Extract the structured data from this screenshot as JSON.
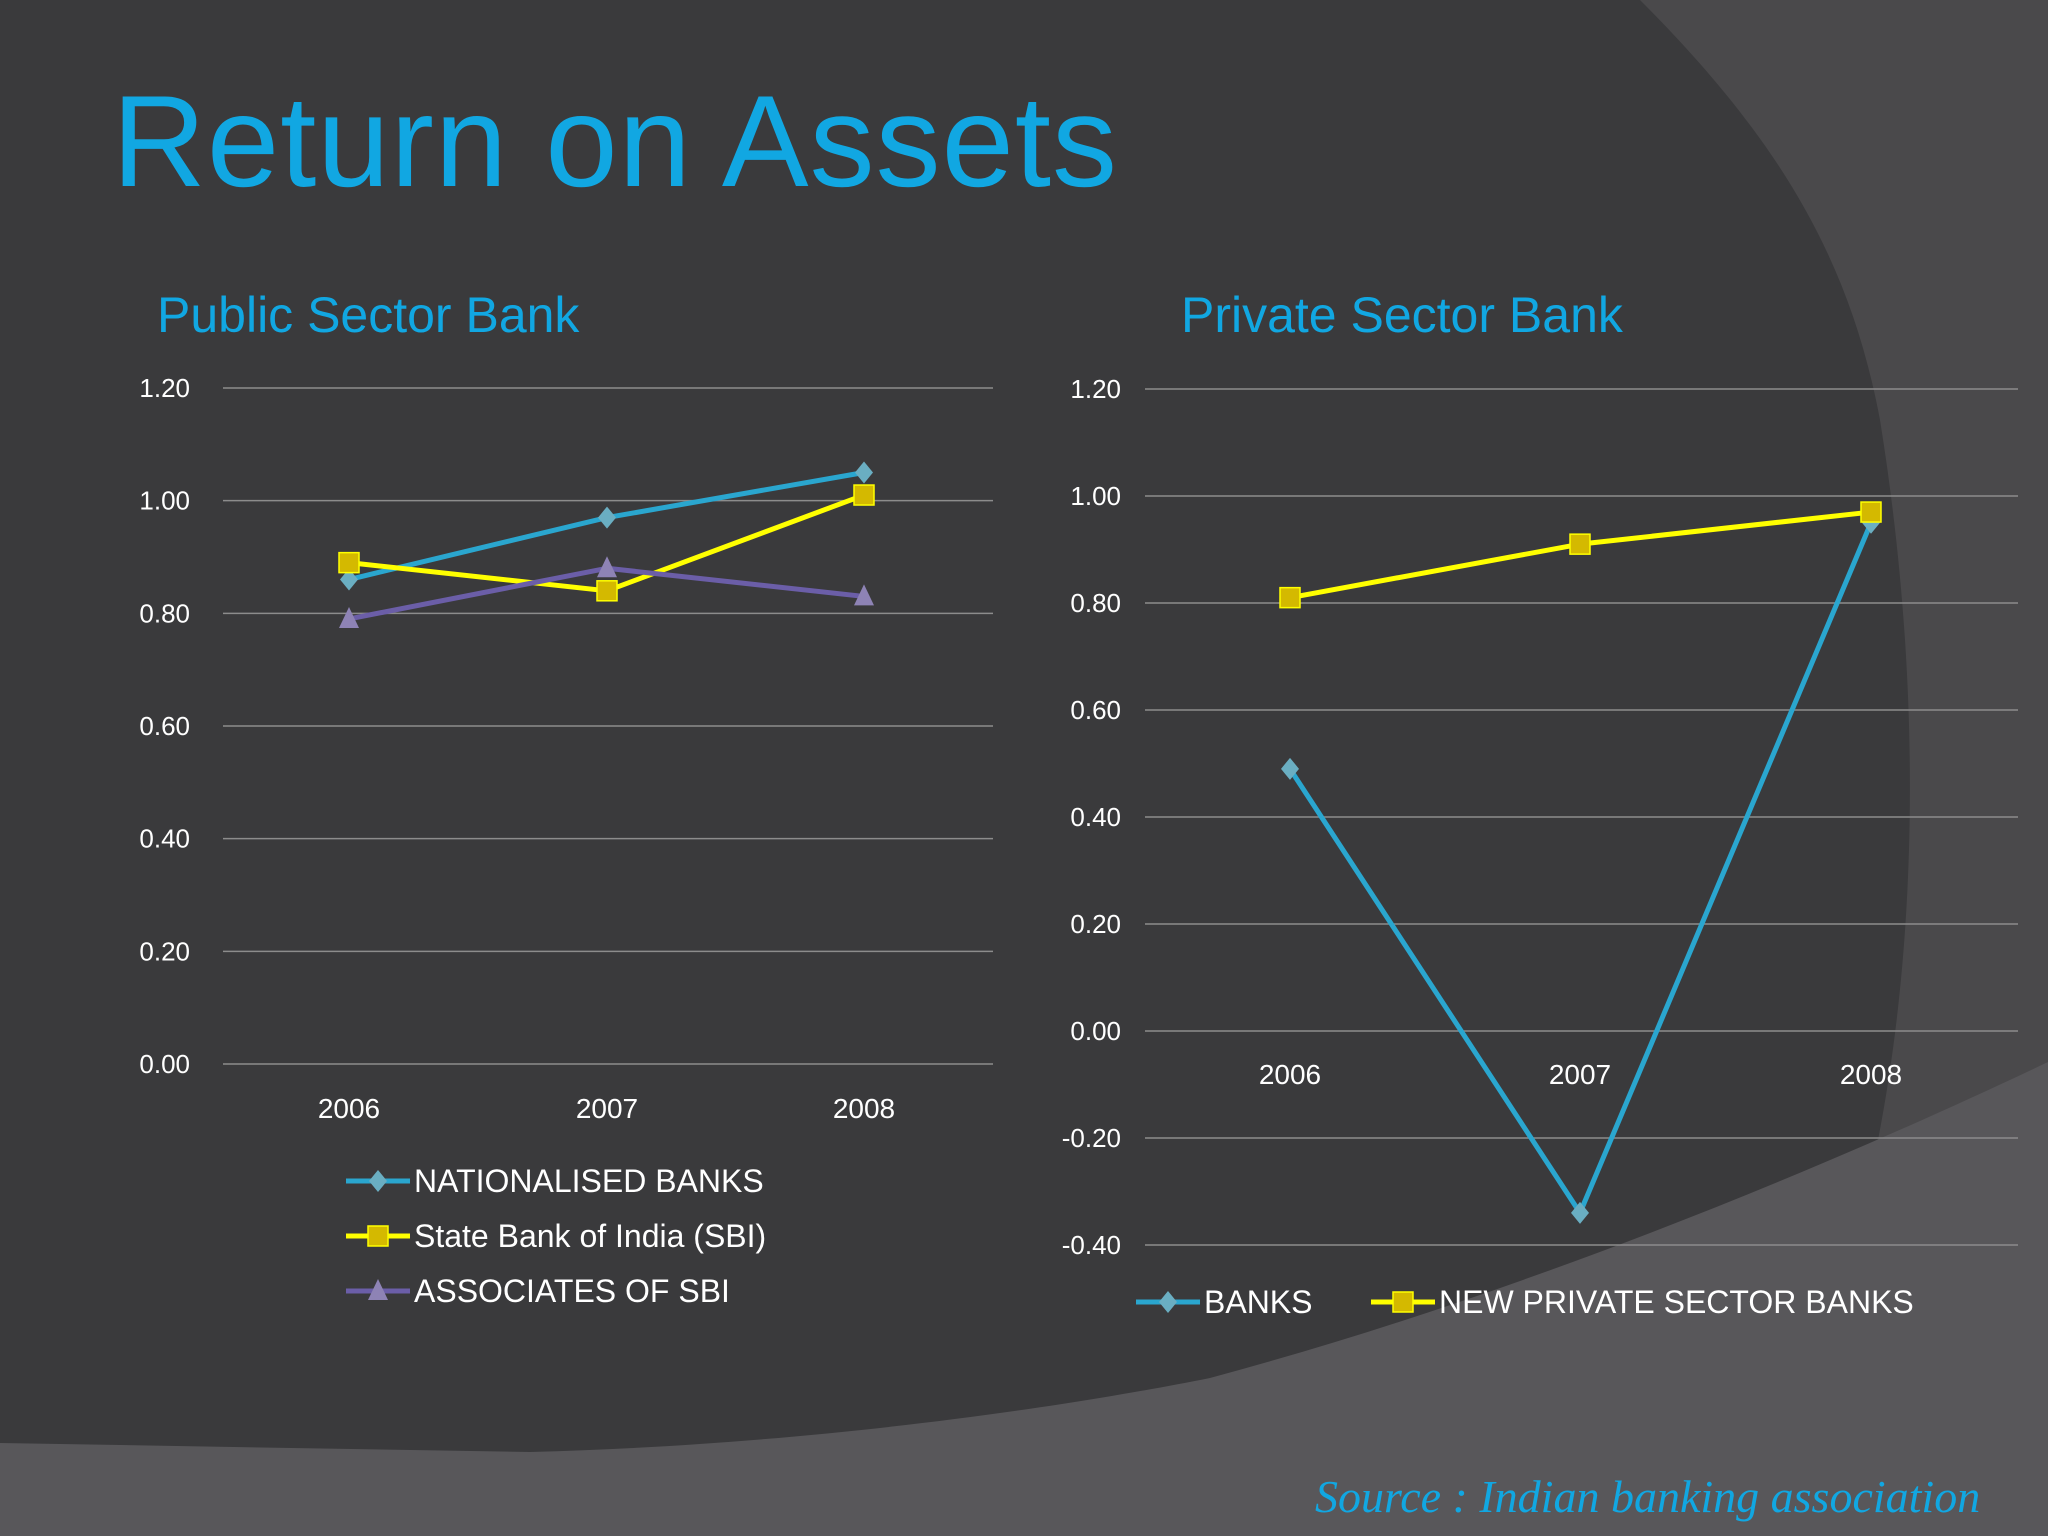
{
  "slide": {
    "title": "Return on Assets",
    "source": "Source : Indian banking association"
  },
  "colors": {
    "background": "#3a3a3c",
    "title": "#11a7e2",
    "nationalised": "#2aa6cf",
    "sbi": "#ffff00",
    "sbi_marker": "#d4b900",
    "associates": "#6b5ea8",
    "associates_marker": "#8e83b5",
    "diamond_marker": "#6aaec2",
    "gridline": "#8c8c8c",
    "text": "#ffffff"
  },
  "chart_data": [
    {
      "type": "line",
      "title": "Public Sector Bank",
      "categories": [
        "2006",
        "2007",
        "2008"
      ],
      "series": [
        {
          "name": "NATIONALISED BANKS",
          "values": [
            0.86,
            0.97,
            1.05
          ],
          "marker": "diamond"
        },
        {
          "name": "State Bank of India (SBI)",
          "values": [
            0.89,
            0.84,
            1.01
          ],
          "marker": "square"
        },
        {
          "name": "ASSOCIATES OF SBI",
          "values": [
            0.79,
            0.88,
            0.83
          ],
          "marker": "triangle"
        }
      ],
      "yticks": [
        "0.00",
        "0.20",
        "0.40",
        "0.60",
        "0.80",
        "1.00",
        "1.20"
      ],
      "ylim": [
        0,
        1.2
      ],
      "xlabel": "",
      "ylabel": "",
      "grid": true,
      "legend_position": "bottom"
    },
    {
      "type": "line",
      "title": "Private Sector Bank",
      "categories": [
        "2006",
        "2007",
        "2008"
      ],
      "series": [
        {
          "name": "BANKS",
          "values": [
            0.49,
            -0.34,
            0.95
          ],
          "marker": "diamond"
        },
        {
          "name": "NEW PRIVATE SECTOR BANKS",
          "values": [
            0.81,
            0.91,
            0.97
          ],
          "marker": "square"
        }
      ],
      "yticks": [
        "-0.40",
        "-0.20",
        "0.00",
        "0.20",
        "0.40",
        "0.60",
        "0.80",
        "1.00",
        "1.20"
      ],
      "ylim": [
        -0.4,
        1.2
      ],
      "xlabel": "",
      "ylabel": "",
      "grid": true,
      "legend_position": "bottom"
    }
  ]
}
